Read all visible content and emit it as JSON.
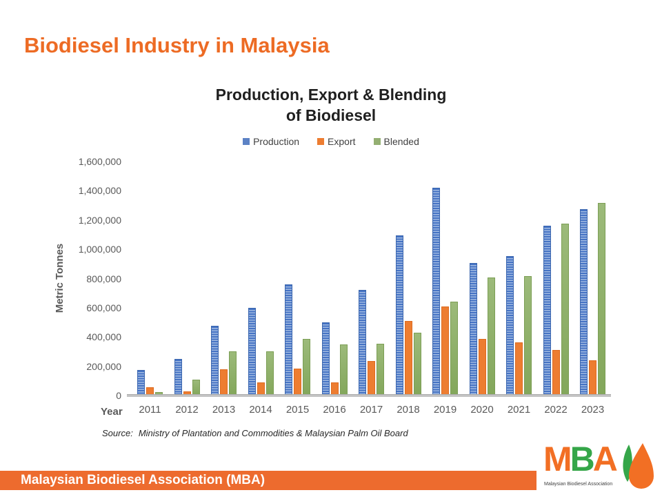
{
  "slide": {
    "title": "Biodiesel Industry in Malaysia",
    "source_label": "Source:",
    "source_text": "Ministry of Plantation and Commodities & Malaysian Palm Oil Board",
    "footer": {
      "banner_text": "Malaysian Biodiesel Association (MBA)"
    },
    "logo": {
      "letters": [
        {
          "char": "M",
          "color": "#F26F24"
        },
        {
          "char": "B",
          "color": "#35A649"
        },
        {
          "char": "A",
          "color": "#F26F24"
        }
      ],
      "caption": "Malaysian Biodiesel Association",
      "droplet_color": "#F26F24",
      "leaf_color": "#35A649"
    },
    "accent_orange": "#ED6B24"
  },
  "chart_data": {
    "type": "bar",
    "title_line1": "Production, Export & Blending",
    "title_line2": "of Biodiesel",
    "xlabel": "Year",
    "ylabel": "Metric Tonnes",
    "ylim": [
      0,
      1600000
    ],
    "ytick_step": 200000,
    "yticks": [
      1600000,
      1400000,
      1200000,
      1000000,
      800000,
      600000,
      400000,
      200000,
      0
    ],
    "grid": false,
    "legend_position": "top",
    "categories": [
      "2011",
      "2012",
      "2013",
      "2014",
      "2015",
      "2016",
      "2017",
      "2018",
      "2019",
      "2020",
      "2021",
      "2022",
      "2023"
    ],
    "series": [
      {
        "name": "Production",
        "color": "#4472C4",
        "pattern": "horizontal-stripes",
        "legend_color": "#5C82C5",
        "values": [
          175000,
          250000,
          475000,
          600000,
          760000,
          500000,
          720000,
          1095000,
          1420000,
          905000,
          955000,
          1160000,
          1275000
        ]
      },
      {
        "name": "Export",
        "color": "#ED7D31",
        "pattern": "solid",
        "legend_color": "#ED7D31",
        "values": [
          55000,
          30000,
          180000,
          90000,
          185000,
          90000,
          235000,
          510000,
          610000,
          385000,
          365000,
          310000,
          240000
        ]
      },
      {
        "name": "Blended",
        "color": "#87AB61",
        "pattern": "solid",
        "legend_color": "#94AF72",
        "values": [
          25000,
          110000,
          300000,
          300000,
          385000,
          350000,
          355000,
          430000,
          640000,
          805000,
          815000,
          1175000,
          1315000
        ]
      }
    ]
  }
}
